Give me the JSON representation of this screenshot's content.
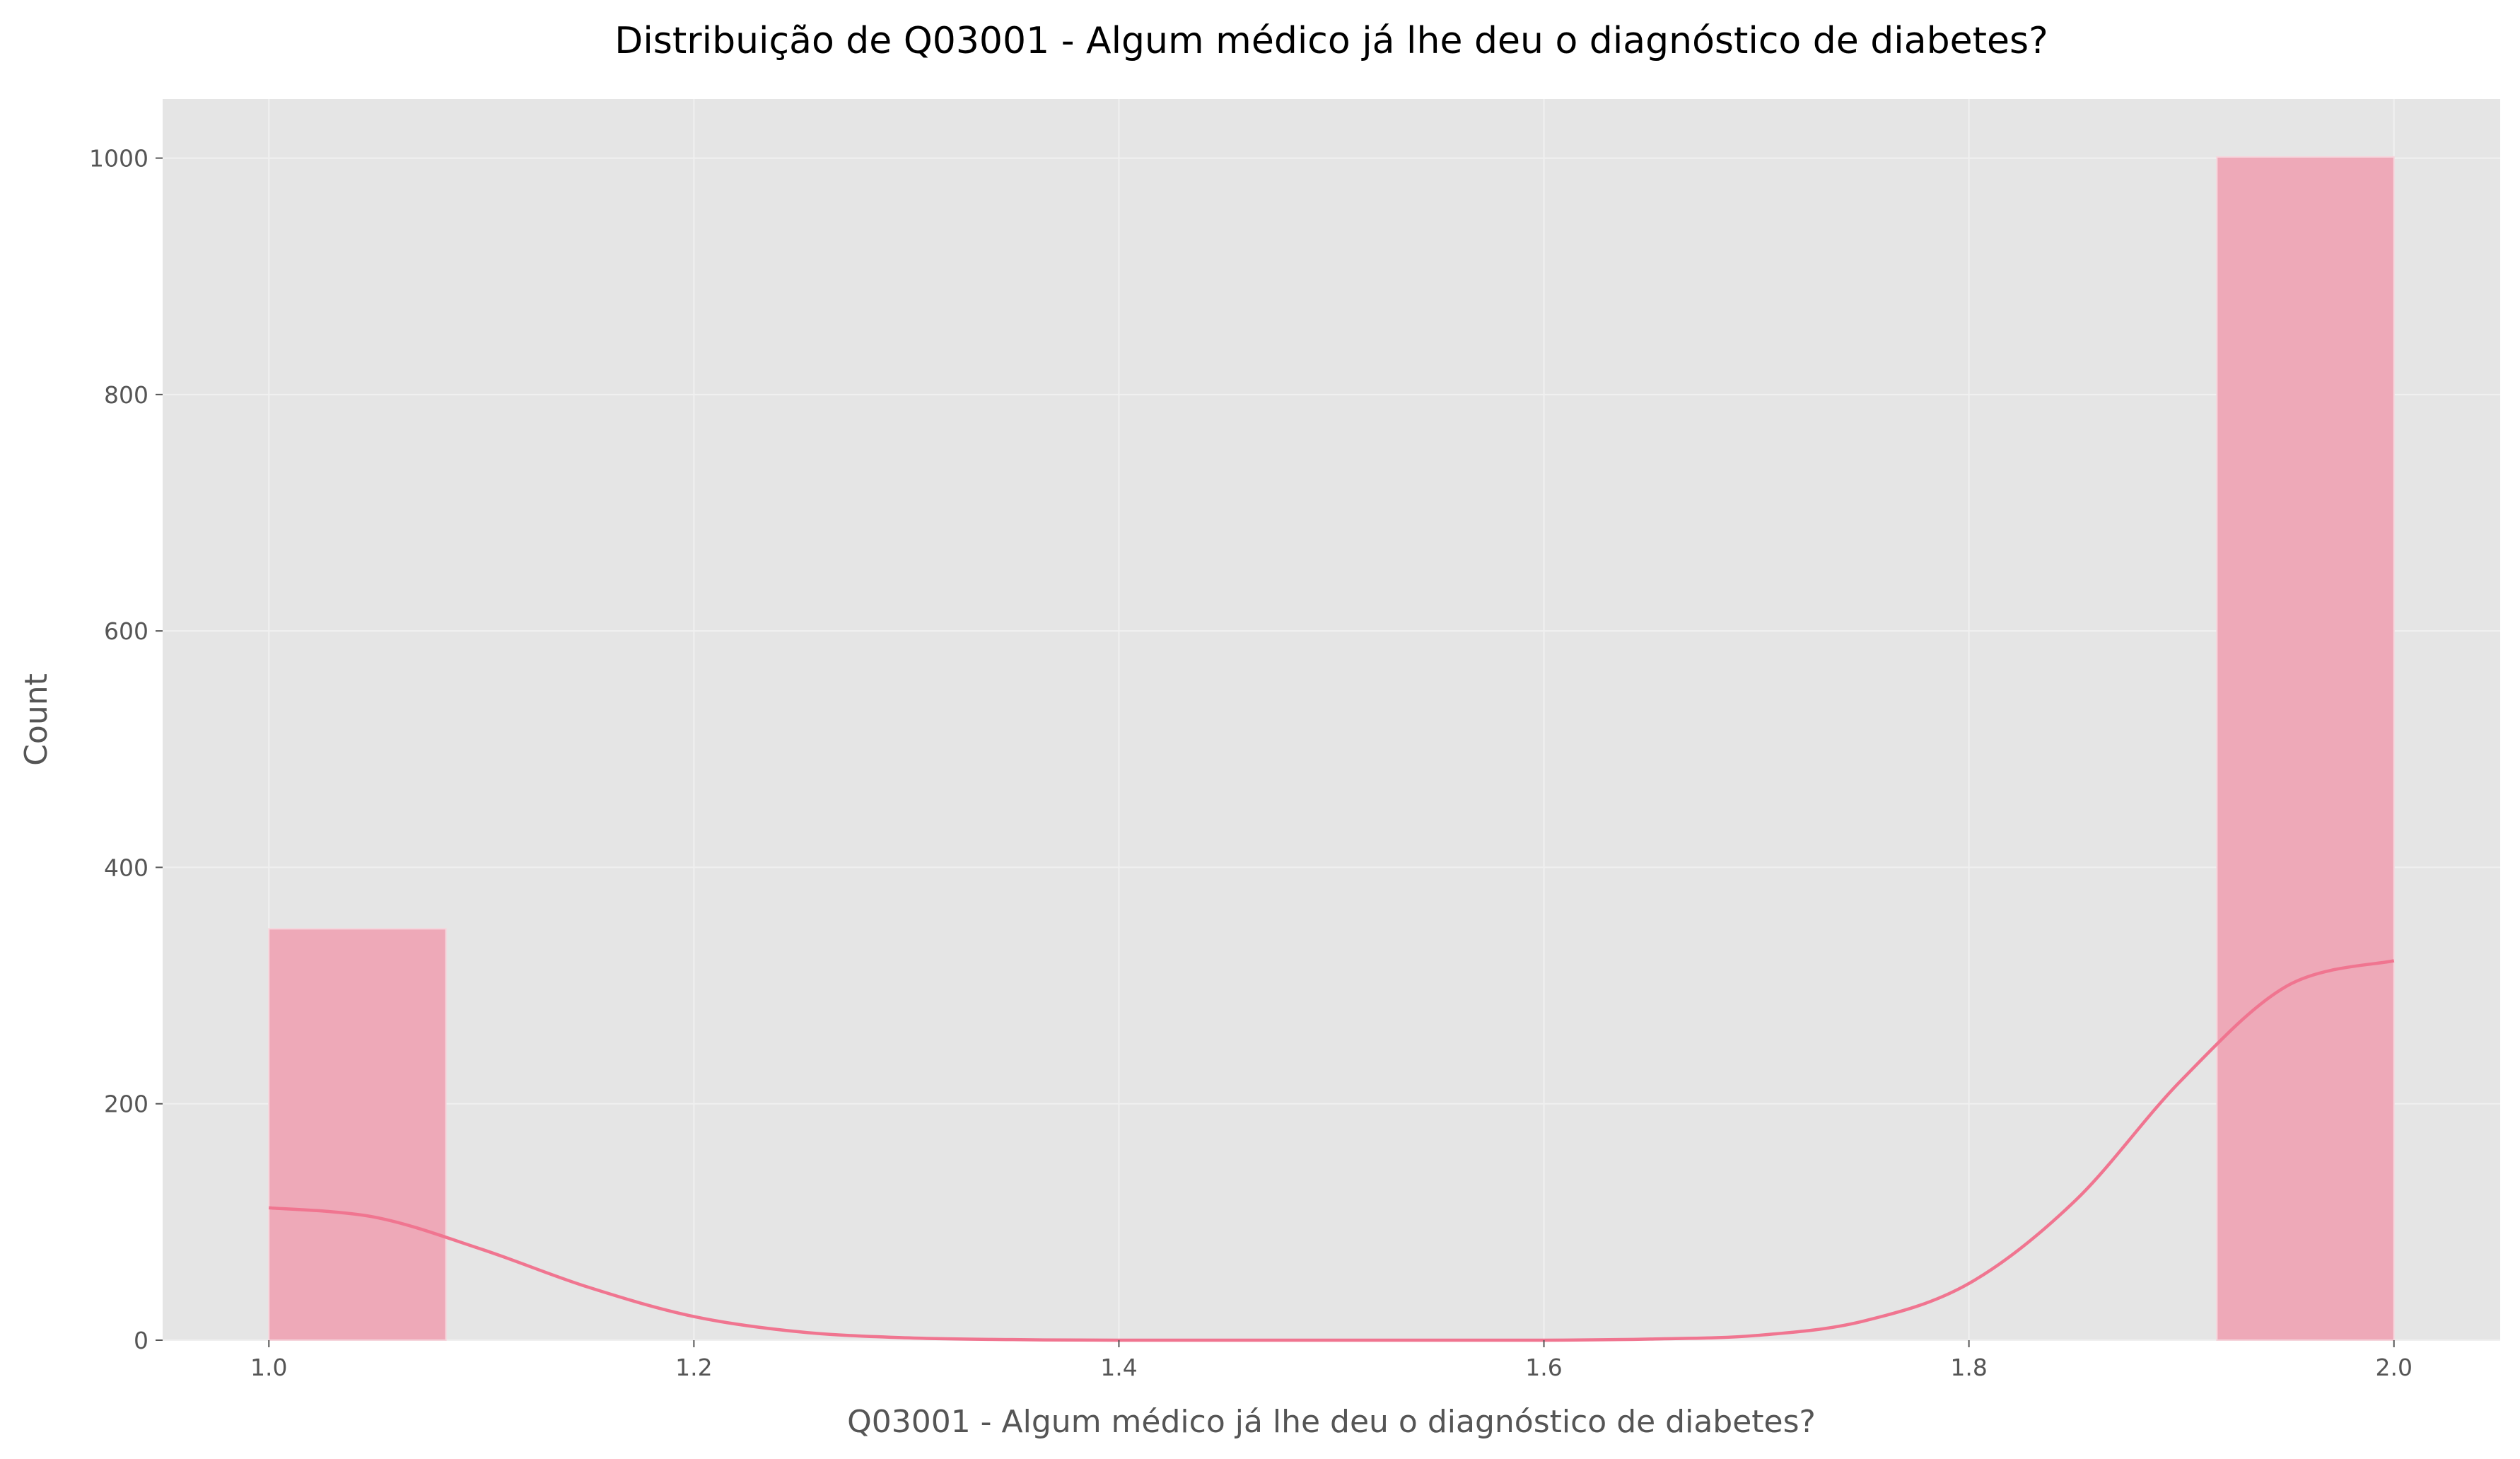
{
  "chart_data": {
    "type": "bar",
    "title": "Distribuição de Q03001 - Algum médico já lhe deu o diagnóstico de diabetes?",
    "xlabel": "Q03001 - Algum médico já lhe deu o diagnóstico de diabetes?",
    "ylabel": "Count",
    "xlim": [
      0.95,
      2.05
    ],
    "ylim": [
      0,
      1050
    ],
    "x_ticks": [
      1.0,
      1.2,
      1.4,
      1.6,
      1.8,
      2.0
    ],
    "x_tick_labels": [
      "1.0",
      "1.2",
      "1.4",
      "1.6",
      "1.8",
      "2.0"
    ],
    "y_ticks": [
      0,
      200,
      400,
      600,
      800,
      1000
    ],
    "y_tick_labels": [
      "0",
      "200",
      "400",
      "600",
      "800",
      "1000"
    ],
    "grid": true,
    "bins": [
      {
        "x0": 1.0,
        "x1": 1.0833,
        "count": 348
      },
      {
        "x0": 1.9167,
        "x1": 2.0,
        "count": 1001
      }
    ],
    "kde": {
      "x": [
        1.0,
        1.05,
        1.1,
        1.15,
        1.2,
        1.25,
        1.3,
        1.35,
        1.4,
        1.5,
        1.6,
        1.65,
        1.7,
        1.75,
        1.8,
        1.85,
        1.9,
        1.95,
        2.0
      ],
      "y": [
        112,
        104,
        77,
        45,
        20,
        7,
        2,
        0.5,
        0,
        0,
        0,
        1,
        4,
        16,
        48,
        118,
        220,
        300,
        321
      ]
    },
    "colors": {
      "background": "#e5e5e5",
      "grid": "#f0f0f0",
      "bar_fill": "#eea9b8",
      "bar_edge": "#f6d5dc",
      "kde_line": "#f07590",
      "tick_text": "#555555",
      "title_text": "#000000"
    }
  }
}
